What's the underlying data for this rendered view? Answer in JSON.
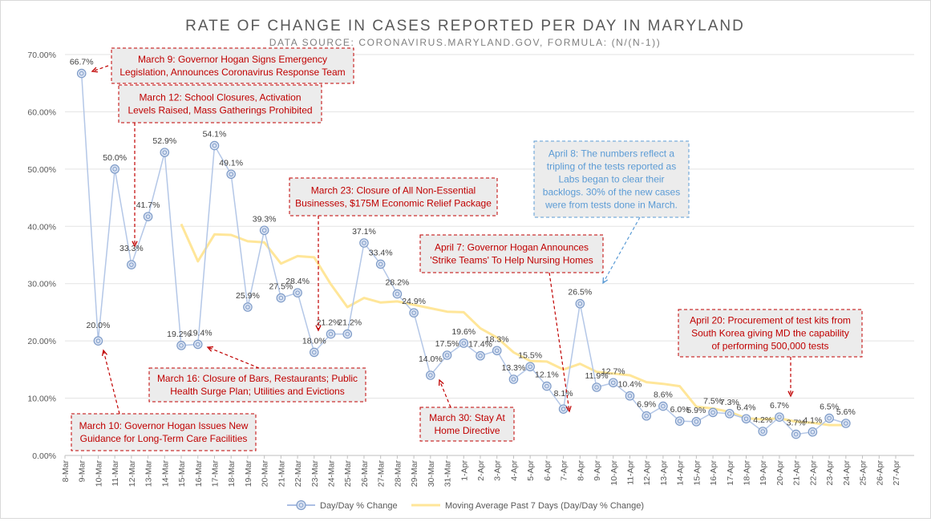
{
  "chart_data": {
    "type": "line",
    "title": "RATE OF CHANGE IN CASES REPORTED PER DAY IN MARYLAND",
    "subtitle": "DATA SOURCE: CORONAVIRUS.MARYLAND.GOV, FORMULA: (N/(N-1))",
    "categories": [
      "8-Mar",
      "9-Mar",
      "10-Mar",
      "11-Mar",
      "12-Mar",
      "13-Mar",
      "14-Mar",
      "15-Mar",
      "16-Mar",
      "17-Mar",
      "18-Mar",
      "19-Mar",
      "20-Mar",
      "21-Mar",
      "22-Mar",
      "23-Mar",
      "24-Mar",
      "25-Mar",
      "26-Mar",
      "27-Mar",
      "28-Mar",
      "29-Mar",
      "30-Mar",
      "31-Mar",
      "1-Apr",
      "2-Apr",
      "3-Apr",
      "4-Apr",
      "5-Apr",
      "6-Apr",
      "7-Apr",
      "8-Apr",
      "9-Apr",
      "10-Apr",
      "11-Apr",
      "12-Apr",
      "13-Apr",
      "14-Apr",
      "15-Apr",
      "16-Apr",
      "17-Apr",
      "18-Apr",
      "19-Apr",
      "20-Apr",
      "21-Apr",
      "22-Apr",
      "23-Apr",
      "24-Apr",
      "25-Apr",
      "26-Apr",
      "27-Apr"
    ],
    "y_ticks": [
      "0.00%",
      "10.00%",
      "20.00%",
      "30.00%",
      "40.00%",
      "50.00%",
      "60.00%",
      "70.00%"
    ],
    "ylim": [
      0,
      70
    ],
    "grid": true,
    "legend_position": "bottom",
    "series": [
      {
        "name": "Day/Day % Change",
        "color": "#8faadc",
        "values": [
          null,
          66.7,
          20.0,
          50.0,
          33.3,
          41.7,
          52.9,
          19.2,
          19.4,
          54.1,
          49.1,
          25.9,
          39.3,
          27.5,
          28.4,
          18.0,
          21.2,
          21.2,
          37.1,
          33.4,
          28.2,
          24.9,
          14.0,
          17.5,
          19.6,
          17.4,
          18.3,
          13.3,
          15.5,
          12.1,
          8.1,
          26.5,
          11.9,
          12.7,
          10.4,
          6.9,
          8.6,
          6.0,
          5.9,
          7.5,
          7.3,
          6.4,
          4.2,
          6.7,
          3.7,
          4.1,
          6.5,
          5.6,
          null,
          null,
          null
        ],
        "labels": [
          "",
          "66.7%",
          "20.0%",
          "50.0%",
          "33.3%",
          "41.7%",
          "52.9%",
          "19.2%",
          "19.4%",
          "54.1%",
          "49.1%",
          "25.9%",
          "39.3%",
          "27.5%",
          "28.4%",
          "18.0%",
          "21.2%",
          "21.2%",
          "37.1%",
          "33.4%",
          "28.2%",
          "24.9%",
          "14.0%",
          "17.5%",
          "19.6%",
          "17.4%",
          "18.3%",
          "13.3%",
          "15.5%",
          "12.1%",
          "8.1%",
          "26.5%",
          "11.9%",
          "12.7%",
          "10.4%",
          "6.9%",
          "8.6%",
          "6.0%",
          "5.9%",
          "7.5%",
          "7.3%",
          "6.4%",
          "4.2%",
          "6.7%",
          "3.7%",
          "4.1%",
          "6.5%",
          "5.6%",
          "",
          "",
          ""
        ]
      },
      {
        "name": "Moving Average Past 7 Days (Day/Day % Change)",
        "color": "#ffe699",
        "values": [
          null,
          null,
          null,
          null,
          null,
          null,
          null,
          40.4,
          33.9,
          38.6,
          38.5,
          37.4,
          37.2,
          33.5,
          34.8,
          34.6,
          29.9,
          25.9,
          27.5,
          26.7,
          26.9,
          26.3,
          25.7,
          25.1,
          25.0,
          22.2,
          20.6,
          18.0,
          16.5,
          16.4,
          15.0,
          16.0,
          14.6,
          14.3,
          14.0,
          12.8,
          12.5,
          12.1,
          8.5,
          8.2,
          7.6,
          6.5,
          6.3,
          6.5,
          5.9,
          5.7,
          5.3,
          5.3,
          null,
          null,
          null
        ]
      }
    ],
    "annotations": [
      {
        "id": "mar9",
        "color": "red",
        "lines": [
          "March 9: Governor Hogan Signs Emergency",
          "Legislation, Announces Coronavirus Response Team"
        ]
      },
      {
        "id": "mar12",
        "color": "red",
        "lines": [
          "March 12: School Closures, Activation",
          "Levels Raised, Mass Gatherings Prohibited"
        ]
      },
      {
        "id": "mar23",
        "color": "red",
        "lines": [
          "March 23: Closure of All Non-Essential",
          "Businesses, $175M Economic Relief Package"
        ]
      },
      {
        "id": "apr8",
        "color": "blue",
        "lines": [
          "April 8: The numbers reflect a",
          "tripling of the tests reported as",
          "Labs began to clear their",
          "backlogs. 30% of the new cases",
          "were from tests done in March."
        ]
      },
      {
        "id": "apr7",
        "color": "red",
        "lines": [
          "April 7: Governor Hogan Announces",
          "'Strike Teams' To Help Nursing Homes"
        ]
      },
      {
        "id": "apr20",
        "color": "red",
        "lines": [
          "April 20: Procurement of test kits from",
          "South Korea  giving MD the capability",
          "of performing 500,000 tests"
        ]
      },
      {
        "id": "mar16",
        "color": "red",
        "lines": [
          "March 16: Closure of Bars, Restaurants; Public",
          "Health Surge Plan; Utilities and Evictions"
        ]
      },
      {
        "id": "mar10",
        "color": "red",
        "lines": [
          "March 10: Governor Hogan Issues New",
          "Guidance for Long-Term Care Facilities"
        ]
      },
      {
        "id": "mar30",
        "color": "red",
        "lines": [
          "March 30: Stay At",
          "Home Directive"
        ]
      }
    ]
  }
}
